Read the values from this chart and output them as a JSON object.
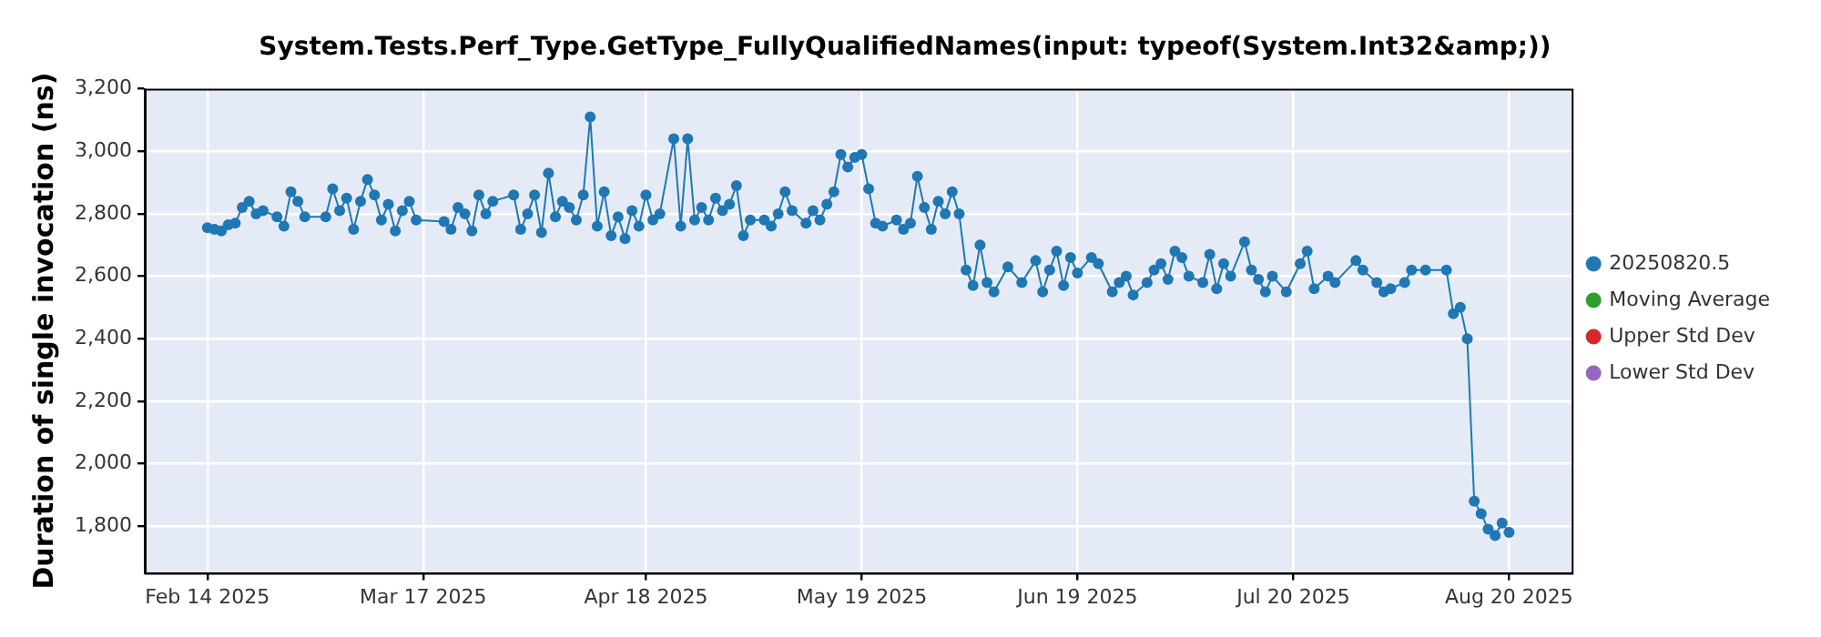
{
  "chart_data": {
    "type": "line",
    "title": "System.Tests.Perf_Type.GetType_FullyQualifiedNames(input: typeof(System.Int32&amp;))",
    "ylabel": "Duration of single invocation (ns)",
    "x": [
      "2025-02-14",
      "2025-02-15",
      "2025-02-16",
      "2025-02-17",
      "2025-02-18",
      "2025-02-19",
      "2025-02-20",
      "2025-02-21",
      "2025-02-22",
      "2025-02-24",
      "2025-02-25",
      "2025-02-26",
      "2025-02-27",
      "2025-02-28",
      "2025-03-03",
      "2025-03-04",
      "2025-03-05",
      "2025-03-06",
      "2025-03-07",
      "2025-03-08",
      "2025-03-09",
      "2025-03-10",
      "2025-03-11",
      "2025-03-12",
      "2025-03-13",
      "2025-03-14",
      "2025-03-15",
      "2025-03-16",
      "2025-03-20",
      "2025-03-21",
      "2025-03-22",
      "2025-03-23",
      "2025-03-24",
      "2025-03-25",
      "2025-03-26",
      "2025-03-27",
      "2025-03-30",
      "2025-03-31",
      "2025-04-01",
      "2025-04-02",
      "2025-04-03",
      "2025-04-04",
      "2025-04-05",
      "2025-04-06",
      "2025-04-07",
      "2025-04-08",
      "2025-04-09",
      "2025-04-10",
      "2025-04-11",
      "2025-04-12",
      "2025-04-13",
      "2025-04-14",
      "2025-04-15",
      "2025-04-16",
      "2025-04-17",
      "2025-04-18",
      "2025-04-19",
      "2025-04-20",
      "2025-04-22",
      "2025-04-23",
      "2025-04-24",
      "2025-04-25",
      "2025-04-26",
      "2025-04-27",
      "2025-04-28",
      "2025-04-29",
      "2025-04-30",
      "2025-05-01",
      "2025-05-02",
      "2025-05-03",
      "2025-05-05",
      "2025-05-06",
      "2025-05-07",
      "2025-05-08",
      "2025-05-09",
      "2025-05-11",
      "2025-05-12",
      "2025-05-13",
      "2025-05-14",
      "2025-05-15",
      "2025-05-16",
      "2025-05-17",
      "2025-05-18",
      "2025-05-19",
      "2025-05-20",
      "2025-05-21",
      "2025-05-22",
      "2025-05-24",
      "2025-05-25",
      "2025-05-26",
      "2025-05-27",
      "2025-05-28",
      "2025-05-29",
      "2025-05-30",
      "2025-05-31",
      "2025-06-01",
      "2025-06-02",
      "2025-06-03",
      "2025-06-04",
      "2025-06-05",
      "2025-06-06",
      "2025-06-07",
      "2025-06-09",
      "2025-06-11",
      "2025-06-13",
      "2025-06-14",
      "2025-06-15",
      "2025-06-16",
      "2025-06-17",
      "2025-06-18",
      "2025-06-19",
      "2025-06-21",
      "2025-06-22",
      "2025-06-24",
      "2025-06-25",
      "2025-06-26",
      "2025-06-27",
      "2025-06-29",
      "2025-06-30",
      "2025-07-01",
      "2025-07-02",
      "2025-07-03",
      "2025-07-04",
      "2025-07-05",
      "2025-07-07",
      "2025-07-08",
      "2025-07-09",
      "2025-07-10",
      "2025-07-11",
      "2025-07-13",
      "2025-07-14",
      "2025-07-15",
      "2025-07-16",
      "2025-07-17",
      "2025-07-19",
      "2025-07-21",
      "2025-07-22",
      "2025-07-23",
      "2025-07-25",
      "2025-07-26",
      "2025-07-29",
      "2025-07-30",
      "2025-08-01",
      "2025-08-02",
      "2025-08-03",
      "2025-08-05",
      "2025-08-06",
      "2025-08-08",
      "2025-08-11",
      "2025-08-12",
      "2025-08-13",
      "2025-08-14",
      "2025-08-15",
      "2025-08-16",
      "2025-08-17",
      "2025-08-18",
      "2025-08-19",
      "2025-08-20"
    ],
    "series": [
      {
        "name": "20250820.5",
        "color": "#1f77b4",
        "values": [
          2755,
          2750,
          2745,
          2765,
          2770,
          2820,
          2840,
          2800,
          2810,
          2790,
          2760,
          2870,
          2840,
          2790,
          2790,
          2880,
          2810,
          2850,
          2750,
          2840,
          2910,
          2860,
          2780,
          2830,
          2745,
          2810,
          2840,
          2780,
          2775,
          2750,
          2820,
          2800,
          2745,
          2860,
          2800,
          2840,
          2860,
          2750,
          2800,
          2860,
          2740,
          2930,
          2790,
          2840,
          2820,
          2780,
          2860,
          3110,
          2760,
          2870,
          2730,
          2790,
          2720,
          2810,
          2760,
          2860,
          2780,
          2800,
          3040,
          2760,
          3040,
          2780,
          2820,
          2780,
          2850,
          2810,
          2830,
          2890,
          2730,
          2780,
          2780,
          2760,
          2800,
          2870,
          2810,
          2770,
          2810,
          2780,
          2830,
          2870,
          2990,
          2950,
          2980,
          2990,
          2880,
          2770,
          2760,
          2780,
          2750,
          2770,
          2920,
          2820,
          2750,
          2840,
          2800,
          2870,
          2800,
          2620,
          2570,
          2700,
          2580,
          2550,
          2630,
          2580,
          2650,
          2550,
          2620,
          2680,
          2570,
          2660,
          2610,
          2660,
          2640,
          2550,
          2580,
          2600,
          2540,
          2580,
          2620,
          2640,
          2590,
          2680,
          2660,
          2600,
          2580,
          2670,
          2560,
          2640,
          2600,
          2710,
          2620,
          2590,
          2550,
          2600,
          2550,
          2640,
          2680,
          2560,
          2600,
          2580,
          2650,
          2620,
          2580,
          2550,
          2560,
          2580,
          2620,
          2620,
          2620,
          2480,
          2500,
          2400,
          1880,
          1840,
          1790,
          1770,
          1810,
          1780
        ]
      },
      {
        "name": "Moving Average",
        "color": "#2ca02c",
        "values": [
          null,
          null,
          null,
          null,
          null,
          null,
          null,
          null,
          null,
          null,
          null,
          null,
          null,
          null,
          null,
          null,
          null,
          null,
          null,
          null,
          null,
          null,
          null,
          null,
          null,
          null,
          null,
          null,
          null,
          null,
          null,
          null,
          null,
          null,
          null,
          null,
          null,
          null,
          null,
          null,
          null,
          null,
          null,
          null,
          null,
          null,
          null,
          null,
          null,
          null,
          null,
          null,
          null,
          null,
          null,
          null,
          null,
          null,
          null,
          null,
          null,
          null,
          null,
          null,
          null,
          null,
          null,
          null,
          null,
          null,
          null,
          null,
          null,
          null,
          null,
          null,
          null,
          null,
          null,
          null,
          null,
          null,
          null,
          null,
          null,
          null,
          null,
          null,
          null,
          null,
          null,
          null,
          null,
          null,
          null,
          null,
          null,
          null,
          null,
          null,
          null,
          null,
          null,
          null,
          null,
          null,
          null,
          null,
          null,
          null,
          null,
          null,
          null,
          null,
          null,
          null,
          null,
          null,
          null,
          null,
          null,
          null,
          null,
          null,
          null,
          null,
          null,
          null,
          null,
          null,
          null,
          null,
          null,
          null,
          null,
          null,
          null,
          null,
          null,
          null,
          null,
          null,
          null,
          null,
          null,
          null,
          null,
          null,
          null,
          null,
          null,
          null,
          null,
          null,
          null,
          null,
          null,
          null
        ]
      },
      {
        "name": "Upper Std Dev",
        "color": "#d62728",
        "values": [
          null,
          null,
          null,
          null,
          null,
          null,
          null,
          null,
          null,
          null,
          null,
          null,
          null,
          null,
          null,
          null,
          null,
          null,
          null,
          null,
          null,
          null,
          null,
          null,
          null,
          null,
          null,
          null,
          null,
          null,
          null,
          null,
          null,
          null,
          null,
          null,
          null,
          null,
          null,
          null,
          null,
          null,
          null,
          null,
          null,
          null,
          null,
          null,
          null,
          null,
          null,
          null,
          null,
          null,
          null,
          null,
          null,
          null,
          null,
          null,
          null,
          null,
          null,
          null,
          null,
          null,
          null,
          null,
          null,
          null,
          null,
          null,
          null,
          null,
          null,
          null,
          null,
          null,
          null,
          null,
          null,
          null,
          null,
          null,
          null,
          null,
          null,
          null,
          null,
          null,
          null,
          null,
          null,
          null,
          null,
          null,
          null,
          null,
          null,
          null,
          null,
          null,
          null,
          null,
          null,
          null,
          null,
          null,
          null,
          null,
          null,
          null,
          null,
          null,
          null,
          null,
          null,
          null,
          null,
          null,
          null,
          null,
          null,
          null,
          null,
          null,
          null,
          null,
          null,
          null,
          null,
          null,
          null,
          null,
          null,
          null,
          null,
          null,
          null,
          null,
          null,
          null,
          null,
          null,
          null,
          null,
          null,
          null,
          null,
          null,
          null,
          null,
          null,
          null,
          null,
          null,
          null,
          null
        ]
      },
      {
        "name": "Lower Std Dev",
        "color": "#9467bd",
        "values": [
          null,
          null,
          null,
          null,
          null,
          null,
          null,
          null,
          null,
          null,
          null,
          null,
          null,
          null,
          null,
          null,
          null,
          null,
          null,
          null,
          null,
          null,
          null,
          null,
          null,
          null,
          null,
          null,
          null,
          null,
          null,
          null,
          null,
          null,
          null,
          null,
          null,
          null,
          null,
          null,
          null,
          null,
          null,
          null,
          null,
          null,
          null,
          null,
          null,
          null,
          null,
          null,
          null,
          null,
          null,
          null,
          null,
          null,
          null,
          null,
          null,
          null,
          null,
          null,
          null,
          null,
          null,
          null,
          null,
          null,
          null,
          null,
          null,
          null,
          null,
          null,
          null,
          null,
          null,
          null,
          null,
          null,
          null,
          null,
          null,
          null,
          null,
          null,
          null,
          null,
          null,
          null,
          null,
          null,
          null,
          null,
          null,
          null,
          null,
          null,
          null,
          null,
          null,
          null,
          null,
          null,
          null,
          null,
          null,
          null,
          null,
          null,
          null,
          null,
          null,
          null,
          null,
          null,
          null,
          null,
          null,
          null,
          null,
          null,
          null,
          null,
          null,
          null,
          null,
          null,
          null,
          null,
          null,
          null,
          null,
          null,
          null,
          null,
          null,
          null,
          null,
          null,
          null,
          null,
          null,
          null,
          null,
          null,
          null,
          null,
          null,
          null,
          null,
          null,
          null,
          null,
          null,
          null
        ]
      }
    ],
    "xlim": [
      "2025-02-05",
      "2025-08-29"
    ],
    "xticks": [
      {
        "value": "2025-02-14",
        "label": "Feb 14 2025"
      },
      {
        "value": "2025-03-17",
        "label": "Mar 17 2025"
      },
      {
        "value": "2025-04-18",
        "label": "Apr 18 2025"
      },
      {
        "value": "2025-05-19",
        "label": "May 19 2025"
      },
      {
        "value": "2025-06-19",
        "label": "Jun 19 2025"
      },
      {
        "value": "2025-07-20",
        "label": "Jul 20 2025"
      },
      {
        "value": "2025-08-20",
        "label": "Aug 20 2025"
      }
    ],
    "ylim": [
      1650,
      3200
    ],
    "yticks": [
      {
        "value": 1800,
        "label": "1,800"
      },
      {
        "value": 2000,
        "label": "2,000"
      },
      {
        "value": 2200,
        "label": "2,200"
      },
      {
        "value": 2400,
        "label": "2,400"
      },
      {
        "value": 2600,
        "label": "2,600"
      },
      {
        "value": 2800,
        "label": "2,800"
      },
      {
        "value": 3000,
        "label": "3,000"
      },
      {
        "value": 3200,
        "label": "3,200"
      }
    ],
    "grid": true,
    "legend": "right",
    "marker": "circle",
    "line_style": "solid"
  }
}
